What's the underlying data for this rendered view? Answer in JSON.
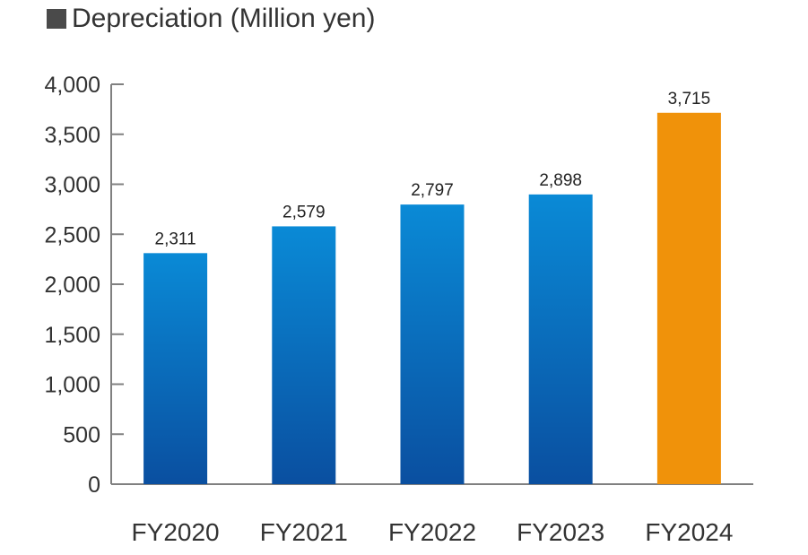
{
  "chart_data": {
    "type": "bar",
    "title": "Depreciation (Million yen)",
    "categories": [
      "FY2020",
      "FY2021",
      "FY2022",
      "FY2023",
      "FY2024"
    ],
    "values": [
      2311,
      2579,
      2797,
      2898,
      3715
    ],
    "value_labels": [
      "2,311",
      "2,579",
      "2,797",
      "2,898",
      "3,715"
    ],
    "y_ticks": [
      0,
      500,
      1000,
      1500,
      2000,
      2500,
      3000,
      3500,
      4000
    ],
    "y_tick_labels": [
      "0",
      "500",
      "1,000",
      "1,500",
      "2,000",
      "2,500",
      "3,000",
      "3,500",
      "4,000"
    ],
    "ylim": [
      0,
      4000
    ],
    "grid": false,
    "legend": "none",
    "colors": {
      "bar_top": "#0a8ad6",
      "bar_bottom": "#0a4fa0",
      "highlight": "#f0920a",
      "axis": "#808080",
      "title_marker": "#4a4a4a"
    },
    "highlight_index": 4
  }
}
